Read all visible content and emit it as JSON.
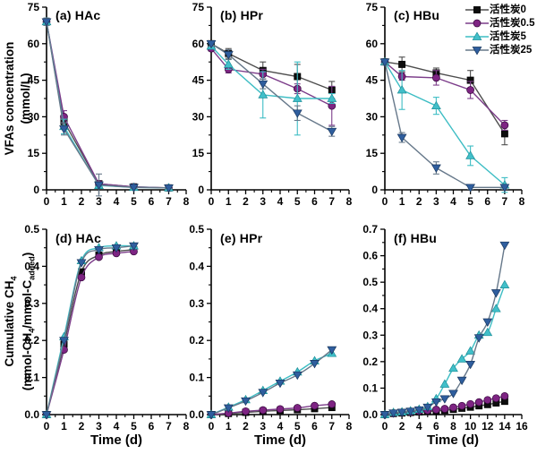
{
  "figure": {
    "x_axis_label": "Time (d)",
    "y_axis_label_top": {
      "line1": "VFAs concentration",
      "line2": "(mmol/L)"
    },
    "y_axis_label_bottom": {
      "line1_prefix": "Cumulative CH",
      "line1_sub": "4",
      "line2_p1": "(mmol-CH",
      "line2_s1": "4",
      "line2_p2": "/mmol-C",
      "line2_s2": "added",
      "line2_p3": ")"
    }
  },
  "legend": {
    "position": "top-right",
    "items": [
      {
        "key": "ac0",
        "label": "活性炭0"
      },
      {
        "key": "ac05",
        "label": "活性炭0.5"
      },
      {
        "key": "ac5",
        "label": "活性炭5"
      },
      {
        "key": "ac25",
        "label": "活性炭25"
      }
    ]
  },
  "series_defs": [
    {
      "key": "ac0",
      "label": "活性炭0",
      "marker": "square",
      "marker_color": "#0d0d0d",
      "edge_color": "#000000",
      "line_color": "#4d4d4d"
    },
    {
      "key": "ac05",
      "label": "活性炭0.5",
      "marker": "circle",
      "marker_color": "#7e2483",
      "edge_color": "#36093c",
      "line_color": "#7c3d8a"
    },
    {
      "key": "ac5",
      "label": "活性炭5",
      "marker": "triangle-up",
      "marker_color": "#41bfc9",
      "edge_color": "#1d8f99",
      "line_color": "#3dbdc4"
    },
    {
      "key": "ac25",
      "label": "活性炭25",
      "marker": "triangle-down",
      "marker_color": "#2f5e9e",
      "edge_color": "#17365e",
      "line_color": "#66788a"
    }
  ],
  "chart_data": [
    {
      "id": "a",
      "type": "line",
      "title": "(a) HAc",
      "xlabel": "",
      "xlim": [
        0,
        8
      ],
      "xticks": [
        0,
        1,
        2,
        3,
        4,
        5,
        6,
        7,
        8
      ],
      "xtick_labels": [
        "0",
        "1",
        "2",
        "3",
        "4",
        "5",
        "6",
        "7",
        "8"
      ],
      "ylim": [
        0,
        75
      ],
      "yticks": [
        0,
        15,
        30,
        45,
        60,
        75
      ],
      "ytick_labels": [
        "0",
        "15",
        "30",
        "45",
        "60",
        "75"
      ],
      "smooth": false,
      "x": [
        0,
        1,
        3,
        5,
        7
      ],
      "series": [
        {
          "key": "ac0",
          "y": [
            69,
            28,
            2.5,
            1.2,
            0.8
          ],
          "err": [
            1.5,
            2,
            1,
            0.5,
            0.4
          ]
        },
        {
          "key": "ac05",
          "y": [
            69,
            30,
            2.5,
            1.2,
            0.8
          ],
          "err": [
            1.5,
            2.5,
            1,
            0.5,
            0.4
          ]
        },
        {
          "key": "ac5",
          "y": [
            69,
            26,
            1.8,
            1.0,
            0.8
          ],
          "err": [
            1.5,
            3,
            1.2,
            0.5,
            0.4
          ]
        },
        {
          "key": "ac25",
          "y": [
            69,
            25,
            2.0,
            1.0,
            0.8
          ],
          "err": [
            1.5,
            2.5,
            4.5,
            0.5,
            0.4
          ]
        }
      ]
    },
    {
      "id": "b",
      "type": "line",
      "title": "(b) HPr",
      "xlabel": "",
      "xlim": [
        0,
        8
      ],
      "xticks": [
        0,
        1,
        2,
        3,
        4,
        5,
        6,
        7,
        8
      ],
      "xtick_labels": [
        "0",
        "1",
        "2",
        "3",
        "4",
        "5",
        "6",
        "7",
        "8"
      ],
      "ylim": [
        0,
        75
      ],
      "yticks": [
        0,
        15,
        30,
        45,
        60,
        75
      ],
      "ytick_labels": [
        "0",
        "15",
        "30",
        "45",
        "60",
        "75"
      ],
      "smooth": false,
      "x": [
        0,
        1,
        3,
        5,
        7
      ],
      "series": [
        {
          "key": "ac0",
          "y": [
            60,
            56,
            49,
            46.5,
            41
          ],
          "err": [
            1,
            2,
            3.5,
            5,
            3.5
          ]
        },
        {
          "key": "ac05",
          "y": [
            58,
            49.5,
            47.5,
            41.5,
            34.5
          ],
          "err": [
            1,
            1.5,
            2,
            2,
            8
          ]
        },
        {
          "key": "ac5",
          "y": [
            59,
            51.5,
            39,
            37.5,
            37.5
          ],
          "err": [
            1,
            2,
            9.5,
            15,
            2
          ]
        },
        {
          "key": "ac25",
          "y": [
            60,
            55.5,
            43.5,
            31.5,
            24
          ],
          "err": [
            1,
            2,
            2,
            3,
            2
          ]
        }
      ]
    },
    {
      "id": "c",
      "type": "line",
      "title": "(c) HBu",
      "xlabel": "",
      "xlim": [
        0,
        8
      ],
      "xticks": [
        0,
        1,
        2,
        3,
        4,
        5,
        6,
        7,
        8
      ],
      "xtick_labels": [
        "0",
        "1",
        "2",
        "3",
        "4",
        "5",
        "6",
        "7",
        "8"
      ],
      "ylim": [
        0,
        75
      ],
      "yticks": [
        0,
        15,
        30,
        45,
        60,
        75
      ],
      "ytick_labels": [
        "0",
        "15",
        "30",
        "45",
        "60",
        "75"
      ],
      "smooth": false,
      "x": [
        0,
        1,
        3,
        5,
        7
      ],
      "series": [
        {
          "key": "ac0",
          "y": [
            52.5,
            51.5,
            48,
            45,
            23
          ],
          "err": [
            1,
            3,
            2,
            4,
            4.5
          ]
        },
        {
          "key": "ac05",
          "y": [
            52.5,
            46.5,
            46,
            41,
            26.5
          ],
          "err": [
            1,
            1.5,
            3,
            3.5,
            2
          ]
        },
        {
          "key": "ac5",
          "y": [
            52.5,
            41,
            34.5,
            14,
            2
          ],
          "err": [
            1,
            8,
            3.5,
            4,
            3
          ]
        },
        {
          "key": "ac25",
          "y": [
            52.5,
            21.5,
            9,
            1,
            1
          ],
          "err": [
            1,
            2,
            2.5,
            0.8,
            0.8
          ]
        }
      ]
    },
    {
      "id": "d",
      "type": "line",
      "title": "(d) HAc",
      "xlabel": "Time (d)",
      "xlim": [
        0,
        8
      ],
      "xticks": [
        0,
        1,
        2,
        3,
        4,
        5,
        6,
        7,
        8
      ],
      "xtick_labels": [
        "0",
        "1",
        "2",
        "3",
        "4",
        "5",
        "6",
        "7",
        "8"
      ],
      "ylim": [
        0,
        0.5
      ],
      "yticks": [
        0,
        0.1,
        0.2,
        0.3,
        0.4,
        0.5
      ],
      "ytick_labels": [
        "0.0",
        "0.1",
        "0.2",
        "0.3",
        "0.4",
        "0.5"
      ],
      "smooth": true,
      "x": [
        0,
        1,
        2,
        3,
        4,
        5
      ],
      "series": [
        {
          "key": "ac0",
          "y": [
            0,
            0.19,
            0.385,
            0.43,
            0.44,
            0.445
          ]
        },
        {
          "key": "ac05",
          "y": [
            0,
            0.175,
            0.37,
            0.425,
            0.435,
            0.44
          ]
        },
        {
          "key": "ac5",
          "y": [
            0,
            0.21,
            0.415,
            0.45,
            0.455,
            0.455
          ]
        },
        {
          "key": "ac25",
          "y": [
            0,
            0.2,
            0.41,
            0.445,
            0.45,
            0.455
          ]
        }
      ]
    },
    {
      "id": "e",
      "type": "line",
      "title": "(e) HPr",
      "xlabel": "Time (d)",
      "xlim": [
        0,
        8
      ],
      "xticks": [
        0,
        1,
        2,
        3,
        4,
        5,
        6,
        7,
        8
      ],
      "xtick_labels": [
        "0",
        "1",
        "2",
        "3",
        "4",
        "5",
        "6",
        "7",
        "8"
      ],
      "ylim": [
        0,
        0.5
      ],
      "yticks": [
        0,
        0.1,
        0.2,
        0.3,
        0.4,
        0.5
      ],
      "ytick_labels": [
        "0.0",
        "0.1",
        "0.2",
        "0.3",
        "0.4",
        "0.5"
      ],
      "smooth": true,
      "x": [
        0,
        1,
        2,
        3,
        4,
        5,
        6,
        7
      ],
      "series": [
        {
          "key": "ac0",
          "y": [
            0,
            0.003,
            0.006,
            0.009,
            0.011,
            0.013,
            0.016,
            0.019
          ]
        },
        {
          "key": "ac05",
          "y": [
            0,
            0.004,
            0.009,
            0.012,
            0.015,
            0.018,
            0.024,
            0.028
          ]
        },
        {
          "key": "ac5",
          "y": [
            0,
            0.02,
            0.04,
            0.065,
            0.09,
            0.115,
            0.145,
            0.165
          ]
        },
        {
          "key": "ac25",
          "y": [
            0,
            0.018,
            0.037,
            0.06,
            0.085,
            0.107,
            0.138,
            0.175
          ]
        }
      ]
    },
    {
      "id": "f",
      "type": "line",
      "title": "(f) HBu",
      "xlabel": "Time (d)",
      "xlim": [
        0,
        16
      ],
      "xticks": [
        0,
        2,
        4,
        6,
        8,
        10,
        12,
        14,
        16
      ],
      "xtick_labels": [
        "0",
        "2",
        "4",
        "6",
        "8",
        "10",
        "12",
        "14",
        "16"
      ],
      "ylim": [
        0,
        0.7
      ],
      "yticks": [
        0,
        0.1,
        0.2,
        0.3,
        0.4,
        0.5,
        0.6,
        0.7
      ],
      "ytick_labels": [
        "0.0",
        "0.1",
        "0.2",
        "0.3",
        "0.4",
        "0.5",
        "0.6",
        "0.7"
      ],
      "smooth": true,
      "x": [
        0,
        1,
        2,
        3,
        4,
        5,
        6,
        7,
        8,
        9,
        10,
        11,
        12,
        13,
        14
      ],
      "series": [
        {
          "key": "ac0",
          "y": [
            0,
            0.004,
            0.006,
            0.008,
            0.01,
            0.012,
            0.014,
            0.016,
            0.02,
            0.024,
            0.028,
            0.033,
            0.038,
            0.044,
            0.05
          ]
        },
        {
          "key": "ac05",
          "y": [
            0,
            0.005,
            0.008,
            0.01,
            0.013,
            0.016,
            0.019,
            0.022,
            0.027,
            0.033,
            0.04,
            0.047,
            0.055,
            0.062,
            0.07
          ]
        },
        {
          "key": "ac5",
          "y": [
            0,
            0.008,
            0.01,
            0.014,
            0.02,
            0.03,
            0.06,
            0.115,
            0.175,
            0.21,
            0.24,
            0.3,
            0.31,
            0.4,
            0.49
          ]
        },
        {
          "key": "ac25",
          "y": [
            0,
            0.006,
            0.009,
            0.013,
            0.018,
            0.028,
            0.048,
            0.06,
            0.08,
            0.13,
            0.19,
            0.29,
            0.35,
            0.46,
            0.64
          ]
        }
      ]
    }
  ]
}
